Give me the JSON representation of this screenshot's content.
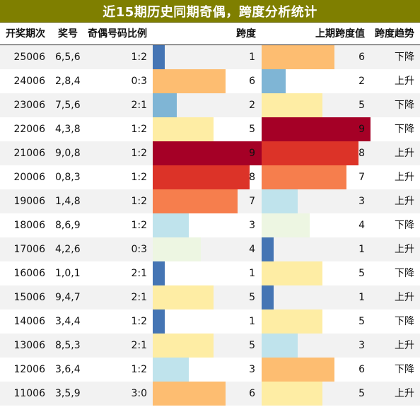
{
  "title": "近15期历史同期奇偶，跨度分析统计",
  "headers": {
    "period": "开奖期次",
    "number": "奖号",
    "ratio": "奇偶号码比例",
    "span": "跨度",
    "prev_span": "上期跨度值",
    "trend": "跨度趋势"
  },
  "span_max": 9,
  "span_colors": {
    "1": "#4575b4",
    "2": "#7fb5d5",
    "3": "#bfe3ec",
    "4": "#edf6e2",
    "5": "#feeda4",
    "6": "#fdbd71",
    "7": "#f67e4d",
    "8": "#dc3328",
    "9": "#a50026"
  },
  "rows": [
    {
      "period": "25006",
      "number": "6,5,6",
      "ratio": "1:2",
      "span": "1",
      "prev_span": "6",
      "trend": "下降"
    },
    {
      "period": "24006",
      "number": "2,8,4",
      "ratio": "0:3",
      "span": "6",
      "prev_span": "2",
      "trend": "上升"
    },
    {
      "period": "23006",
      "number": "7,5,6",
      "ratio": "2:1",
      "span": "2",
      "prev_span": "5",
      "trend": "下降"
    },
    {
      "period": "22006",
      "number": "4,3,8",
      "ratio": "1:2",
      "span": "5",
      "prev_span": "9",
      "trend": "下降"
    },
    {
      "period": "21006",
      "number": "9,0,8",
      "ratio": "1:2",
      "span": "9",
      "prev_span": "8",
      "trend": "上升"
    },
    {
      "period": "20006",
      "number": "0,8,3",
      "ratio": "1:2",
      "span": "8",
      "prev_span": "7",
      "trend": "上升"
    },
    {
      "period": "19006",
      "number": "1,4,8",
      "ratio": "1:2",
      "span": "7",
      "prev_span": "3",
      "trend": "上升"
    },
    {
      "period": "18006",
      "number": "8,6,9",
      "ratio": "1:2",
      "span": "3",
      "prev_span": "4",
      "trend": "下降"
    },
    {
      "period": "17006",
      "number": "4,2,6",
      "ratio": "0:3",
      "span": "4",
      "prev_span": "1",
      "trend": "上升"
    },
    {
      "period": "16006",
      "number": "1,0,1",
      "ratio": "2:1",
      "span": "1",
      "prev_span": "5",
      "trend": "下降"
    },
    {
      "period": "15006",
      "number": "9,4,7",
      "ratio": "2:1",
      "span": "5",
      "prev_span": "1",
      "trend": "上升"
    },
    {
      "period": "14006",
      "number": "3,4,4",
      "ratio": "1:2",
      "span": "1",
      "prev_span": "5",
      "trend": "下降"
    },
    {
      "period": "13006",
      "number": "8,5,3",
      "ratio": "2:1",
      "span": "5",
      "prev_span": "3",
      "trend": "上升"
    },
    {
      "period": "12006",
      "number": "3,6,4",
      "ratio": "1:2",
      "span": "3",
      "prev_span": "6",
      "trend": "下降"
    },
    {
      "period": "11006",
      "number": "3,5,9",
      "ratio": "3:0",
      "span": "6",
      "prev_span": "5",
      "trend": "上升"
    }
  ]
}
